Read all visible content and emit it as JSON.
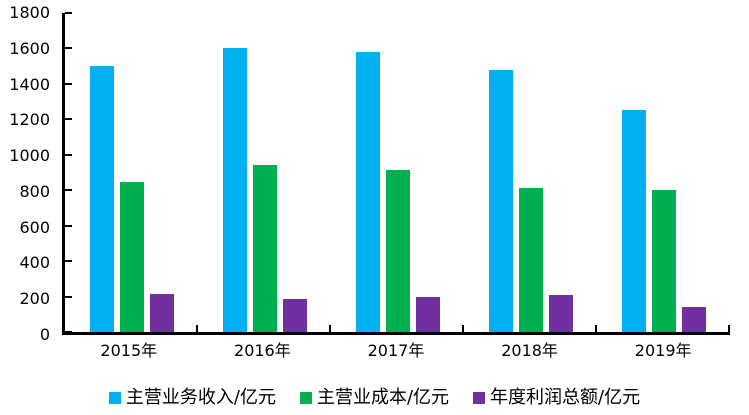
{
  "chart_data": {
    "type": "bar",
    "title": "",
    "xlabel": "",
    "ylabel": "",
    "categories": [
      "2015年",
      "2016年",
      "2017年",
      "2018年",
      "2019年"
    ],
    "series": [
      {
        "name": "主营业务收入/亿元",
        "color": "#00B0F0",
        "values": [
          1500,
          1605,
          1580,
          1480,
          1255
        ]
      },
      {
        "name": "主营业成本/亿元",
        "color": "#00B050",
        "values": [
          845,
          945,
          915,
          815,
          800
        ]
      },
      {
        "name": "年度利润总额/亿元",
        "color": "#7030A0",
        "values": [
          215,
          185,
          195,
          210,
          140
        ]
      }
    ],
    "y_axis": {
      "min": 0,
      "max": 1800,
      "step": 200,
      "ticks": [
        0,
        200,
        400,
        600,
        800,
        1000,
        1200,
        1400,
        1600,
        1800
      ]
    },
    "x_axis": {
      "boundary_ticks": true
    },
    "legend_position": "bottom",
    "grid": false,
    "axis_color": "#000000",
    "background": "#FFFFFF",
    "ylim": [
      0,
      1800
    ]
  }
}
